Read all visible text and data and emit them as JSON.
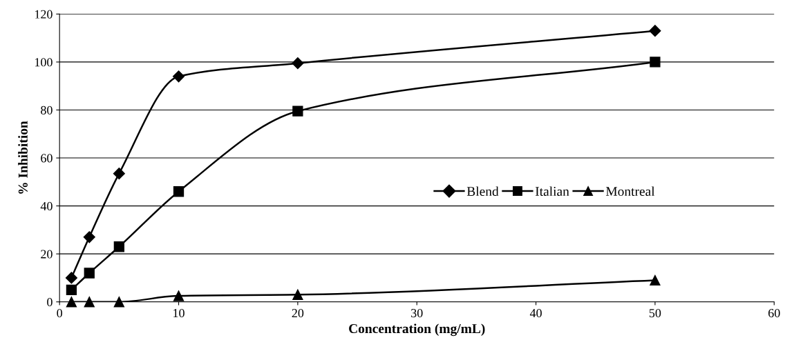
{
  "chart_data": {
    "type": "line",
    "xlabel": "Concentration (mg/mL)",
    "ylabel": "% Inhibition",
    "x": [
      1,
      2.5,
      5,
      10,
      20,
      50
    ],
    "series": [
      {
        "name": "Blend",
        "color": "#000000",
        "marker": "diamond",
        "values": [
          10,
          27,
          53.5,
          94,
          99.5,
          113
        ]
      },
      {
        "name": "Italian",
        "color": "#000000",
        "marker": "square",
        "values": [
          5,
          12,
          23,
          46,
          79.5,
          100
        ]
      },
      {
        "name": "Montreal",
        "color": "#000000",
        "marker": "triangle",
        "values": [
          0,
          0,
          0,
          2.5,
          3,
          9
        ]
      }
    ],
    "xlim": [
      0,
      60
    ],
    "xticks": [
      0,
      10,
      20,
      30,
      40,
      50,
      60
    ],
    "ylim": [
      0,
      120
    ],
    "yticks": [
      0,
      20,
      40,
      60,
      80,
      100,
      120
    ],
    "grid": "y",
    "legend": "right",
    "line_style": "solid"
  }
}
